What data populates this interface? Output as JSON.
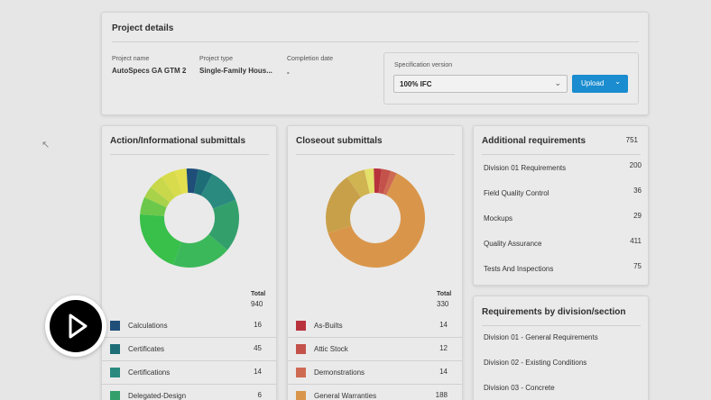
{
  "project_details": {
    "title": "Project details",
    "fields": [
      {
        "label": "Project name",
        "value": "AutoSpecs GA GTM 2"
      },
      {
        "label": "Project type",
        "value": "Single-Family Hous..."
      },
      {
        "label": "Completion date",
        "value": "-"
      }
    ],
    "spec_version_label": "Specification version",
    "spec_version_value": "100% IFC",
    "upload_label": "Upload"
  },
  "action_submittals": {
    "title": "Action/Informational submittals",
    "total_label": "Total",
    "total_value": "940",
    "legend": [
      {
        "name": "Calculations",
        "value": "16",
        "color": "#1f4e79"
      },
      {
        "name": "Certificates",
        "value": "45",
        "color": "#1e6e78"
      },
      {
        "name": "Certifications",
        "value": "14",
        "color": "#2a8a80"
      },
      {
        "name": "Delegated-Design",
        "value": "6",
        "color": "#33a06c"
      }
    ]
  },
  "closeout_submittals": {
    "title": "Closeout submittals",
    "total_label": "Total",
    "total_value": "330",
    "legend": [
      {
        "name": "As-Builts",
        "value": "14",
        "color": "#b8323c"
      },
      {
        "name": "Attic Stock",
        "value": "12",
        "color": "#c4524a"
      },
      {
        "name": "Demonstrations",
        "value": "14",
        "color": "#cf6a52"
      },
      {
        "name": "General Warranties",
        "value": "188",
        "color": "#d9964a"
      }
    ]
  },
  "additional_requirements": {
    "title": "Additional requirements",
    "total": "751",
    "items": [
      {
        "name": "Division 01 Requirements",
        "value": "200"
      },
      {
        "name": "Field Quality Control",
        "value": "36"
      },
      {
        "name": "Mockups",
        "value": "29"
      },
      {
        "name": "Quality Assurance",
        "value": "411"
      },
      {
        "name": "Tests And Inspections",
        "value": "75"
      }
    ]
  },
  "requirements_by_division": {
    "title": "Requirements by division/section",
    "items": [
      {
        "name": "Division 01 - General Requirements"
      },
      {
        "name": "Division 02 - Existing Conditions"
      },
      {
        "name": "Division 03 - Concrete"
      }
    ]
  },
  "icons": {
    "cursor": "cursor-icon",
    "play": "play-icon",
    "chevron": "chevron-down-icon"
  },
  "donut_colors": {
    "action": [
      "#1f4e79",
      "#1e6e78",
      "#2a8a80",
      "#33a06c",
      "#3bb85a",
      "#38c04a",
      "#6cc84a",
      "#a8d24a",
      "#c9d84a",
      "#d8dc4c",
      "#e2e04e",
      "#1f4e79"
    ],
    "closeout": [
      "#b8323c",
      "#c4524a",
      "#cf6a52",
      "#d9964a",
      "#c9a04a",
      "#d0b452",
      "#e4e06a",
      "#b8323c"
    ]
  }
}
